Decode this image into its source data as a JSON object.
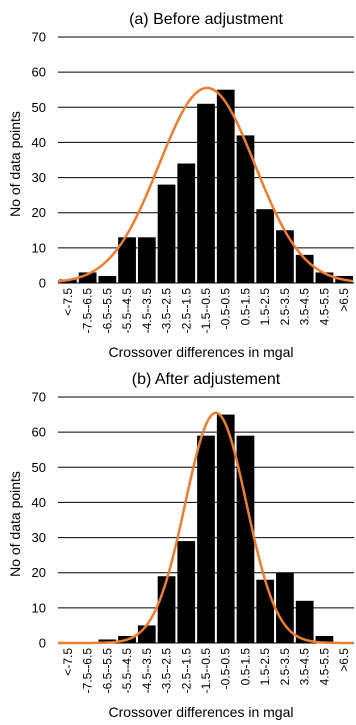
{
  "chart_data": [
    {
      "type": "bar",
      "title": "(a) Before adjustment",
      "xlabel": "Crossover differences in mgal",
      "ylabel": "No of data points",
      "ylim": [
        0,
        70
      ],
      "yticks": [
        0,
        10,
        20,
        30,
        40,
        50,
        60,
        70
      ],
      "grid": true,
      "categories": [
        "<-7.5",
        "-7.5--6.5",
        "-6.5--5.5",
        "-5.5--4.5",
        "-4.5--3.5",
        "-3.5--2.5",
        "-2.5--1.5",
        "-1.5--0.5",
        "-0.5-0.5",
        "0.5-1.5",
        "1.5-2.5",
        "2.5-3.5",
        "3.5-4.5",
        "4.5-5.5",
        ">6.5"
      ],
      "values": [
        1,
        3,
        2,
        13,
        13,
        28,
        34,
        51,
        55,
        42,
        21,
        15,
        8,
        3,
        2
      ],
      "fit_curve": {
        "type": "normal",
        "peak": 55.5,
        "center_index": 7.55,
        "sd_bins": 2.43
      },
      "colors": {
        "bars": "#000000",
        "curve": "#ed7d31",
        "grid": "#000000"
      }
    },
    {
      "type": "bar",
      "title": "(b) After adjustement",
      "xlabel": "Crossover differences in mgal",
      "ylabel": "No of data points",
      "ylim": [
        0,
        70
      ],
      "yticks": [
        0,
        10,
        20,
        30,
        40,
        50,
        60,
        70
      ],
      "grid": true,
      "categories": [
        "<-7.5",
        "-7.5--6.5",
        "-6.5--5.5",
        "-5.5--4.5",
        "-4.5--3.5",
        "-3.5--2.5",
        "-2.5--1.5",
        "-1.5--0.5",
        "-0.5-0.5",
        "0.5-1.5",
        "1.5-2.5",
        "2.5-3.5",
        "3.5-4.5",
        "4.5-5.5",
        ">6.5"
      ],
      "values": [
        0,
        0,
        1,
        2,
        5,
        19,
        29,
        59,
        65,
        59,
        18,
        20,
        12,
        2,
        0
      ],
      "fit_curve": {
        "type": "normal",
        "peak": 65.5,
        "center_index": 8.0,
        "sd_bins": 1.55
      },
      "colors": {
        "bars": "#000000",
        "curve": "#ed7d31",
        "grid": "#000000"
      }
    }
  ]
}
